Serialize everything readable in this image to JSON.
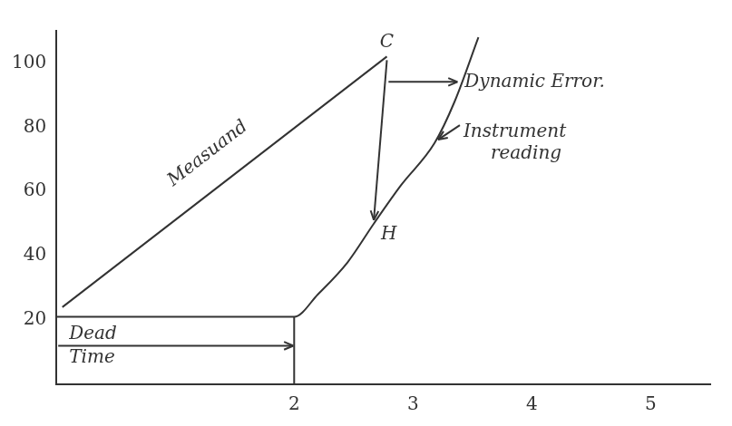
{
  "chart_data": {
    "type": "line",
    "series": [
      {
        "name": "Measuand",
        "color": "#333333",
        "x": [
          0.05,
          2.78
        ],
        "values": [
          24,
          102
        ]
      },
      {
        "name": "Instrument reading",
        "color": "#333333",
        "x": [
          0,
          2,
          2.2,
          2.45,
          2.67,
          2.9,
          3.18,
          3.35,
          3.55
        ],
        "values": [
          21,
          21,
          28,
          38,
          50,
          62,
          75,
          88,
          108
        ]
      }
    ],
    "points": [
      {
        "label": "C",
        "x": 2.78,
        "y": 102
      },
      {
        "label": "H",
        "x": 2.67,
        "y": 50
      }
    ],
    "dynamic_error": {
      "text": "Dynamic Error.",
      "from": [
        2.78,
        102
      ],
      "to": [
        2.67,
        50
      ]
    },
    "dead_time": {
      "text": "Dead Time",
      "from": [
        0,
        12
      ],
      "to": [
        2,
        12
      ]
    },
    "xlim": [
      0,
      5.5
    ],
    "xticks": [
      2,
      3,
      4,
      5
    ],
    "ylim": [
      0,
      110
    ],
    "yticks": [
      20,
      40,
      60,
      80,
      100
    ],
    "grid": false,
    "legend": false
  }
}
